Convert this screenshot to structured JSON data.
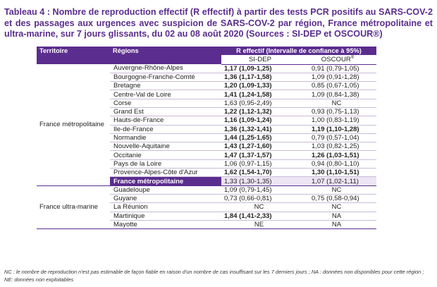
{
  "title": "Tableau 4 : Nombre de reproduction effectif (R effectif) à partir des tests PCR positifs au SARS-COV-2 et des passages aux urgences avec suspicion de SARS-COV-2 par région, France métropolitaine et ultra-marine, sur 7 jours glissants, du 02 au 08 août 2020 (Sources : SI-DEP et OSCOUR®)",
  "headers": {
    "territoire": "Territoire",
    "regions": "Régions",
    "reff": "R effectif (Intervalle de confiance à 95%)",
    "sidep": "SI-DEP",
    "oscour": "OSCOUR",
    "oscour_sup": "®"
  },
  "groups": [
    {
      "name": "France métropolitaine",
      "rows": [
        {
          "region": "Auvergne-Rhône-Alpes",
          "sidep": "1,17 (1,09-1,25)",
          "sidep_bold": true,
          "oscour": "0,91 (0,79-1,05)",
          "oscour_bold": false
        },
        {
          "region": "Bourgogne-Franche-Comté",
          "sidep": "1,36 (1,17-1,58)",
          "sidep_bold": true,
          "oscour": "1,09 (0,91-1,28)",
          "oscour_bold": false
        },
        {
          "region": "Bretagne",
          "sidep": "1,20 (1,09-1,33)",
          "sidep_bold": true,
          "oscour": "0,85 (0,67-1,05)",
          "oscour_bold": false
        },
        {
          "region": "Centre-Val de Loire",
          "sidep": "1,41 (1,24-1,58)",
          "sidep_bold": true,
          "oscour": "1,09 (0,84-1,38)",
          "oscour_bold": false
        },
        {
          "region": "Corse",
          "sidep": "1,63 (0,95-2,49)",
          "sidep_bold": false,
          "oscour": "NC",
          "oscour_bold": false,
          "oscour_center": true
        },
        {
          "region": "Grand Est",
          "sidep": "1,22 (1,12-1,32)",
          "sidep_bold": true,
          "oscour": "0,93 (0,75-1,13)",
          "oscour_bold": false
        },
        {
          "region": "Hauts-de-France",
          "sidep": "1,16 (1,09-1,24)",
          "sidep_bold": true,
          "oscour": "1,00 (0,83-1,19)",
          "oscour_bold": false
        },
        {
          "region": "Ile-de-France",
          "sidep": "1,36 (1,32-1,41)",
          "sidep_bold": true,
          "oscour": "1,19 (1,10-1,28)",
          "oscour_bold": true
        },
        {
          "region": "Normandie",
          "sidep": "1,44 (1,25-1,65)",
          "sidep_bold": true,
          "oscour": "0,79 (0,57-1,04)",
          "oscour_bold": false
        },
        {
          "region": "Nouvelle-Aquitaine",
          "sidep": "1,43 (1,27-1,60)",
          "sidep_bold": true,
          "oscour": "1,03 (0,82-1,25)",
          "oscour_bold": false
        },
        {
          "region": "Occitanie",
          "sidep": "1,47 (1,37-1,57)",
          "sidep_bold": true,
          "oscour": "1,26 (1,03-1,51)",
          "oscour_bold": true
        },
        {
          "region": "Pays de la Loire",
          "sidep": "1,06 (0,97-1,15)",
          "sidep_bold": false,
          "oscour": "0,94 (0,80-1,10)",
          "oscour_bold": false
        },
        {
          "region": "Provence-Alpes-Côte d'Azur",
          "sidep": "1,62 (1,54-1,70)",
          "sidep_bold": true,
          "oscour": "1,30 (1,10-1,51)",
          "oscour_bold": true
        }
      ],
      "total": {
        "region": "France métropolitaine",
        "sidep": "1,33 (1,30-1,35)",
        "oscour": "1,07 (1,02-1,11)"
      }
    },
    {
      "name": "France ultra-marine",
      "rows": [
        {
          "region": "Guadeloupe",
          "sidep": "1,09 (0,79-1,45)",
          "sidep_bold": false,
          "oscour": "NC",
          "oscour_bold": false,
          "oscour_center": true
        },
        {
          "region": "Guyane",
          "sidep": "0,73 (0,66-0,81)",
          "sidep_bold": false,
          "oscour": "0,75 (0,58-0,94)",
          "oscour_bold": false
        },
        {
          "region": "La Réunion",
          "sidep": "NC",
          "sidep_bold": false,
          "sidep_center": true,
          "oscour": "NC",
          "oscour_bold": false,
          "oscour_center": true
        },
        {
          "region": "Martinique",
          "sidep": "1,84 (1,41-2,33)",
          "sidep_bold": true,
          "oscour": "NA",
          "oscour_bold": false,
          "oscour_center": true
        },
        {
          "region": "Mayotte",
          "sidep": "NE",
          "sidep_bold": false,
          "sidep_center": true,
          "oscour": "NA",
          "oscour_bold": false,
          "oscour_center": true
        }
      ]
    }
  ],
  "footnote": "NC : le nombre de reproduction n'est pas estimable de façon fiable en raison d'un nombre de cas insuffisant sur les 7 derniers jours ; NA : données non disponibles pour cette région ; NE: données non exploitables"
}
